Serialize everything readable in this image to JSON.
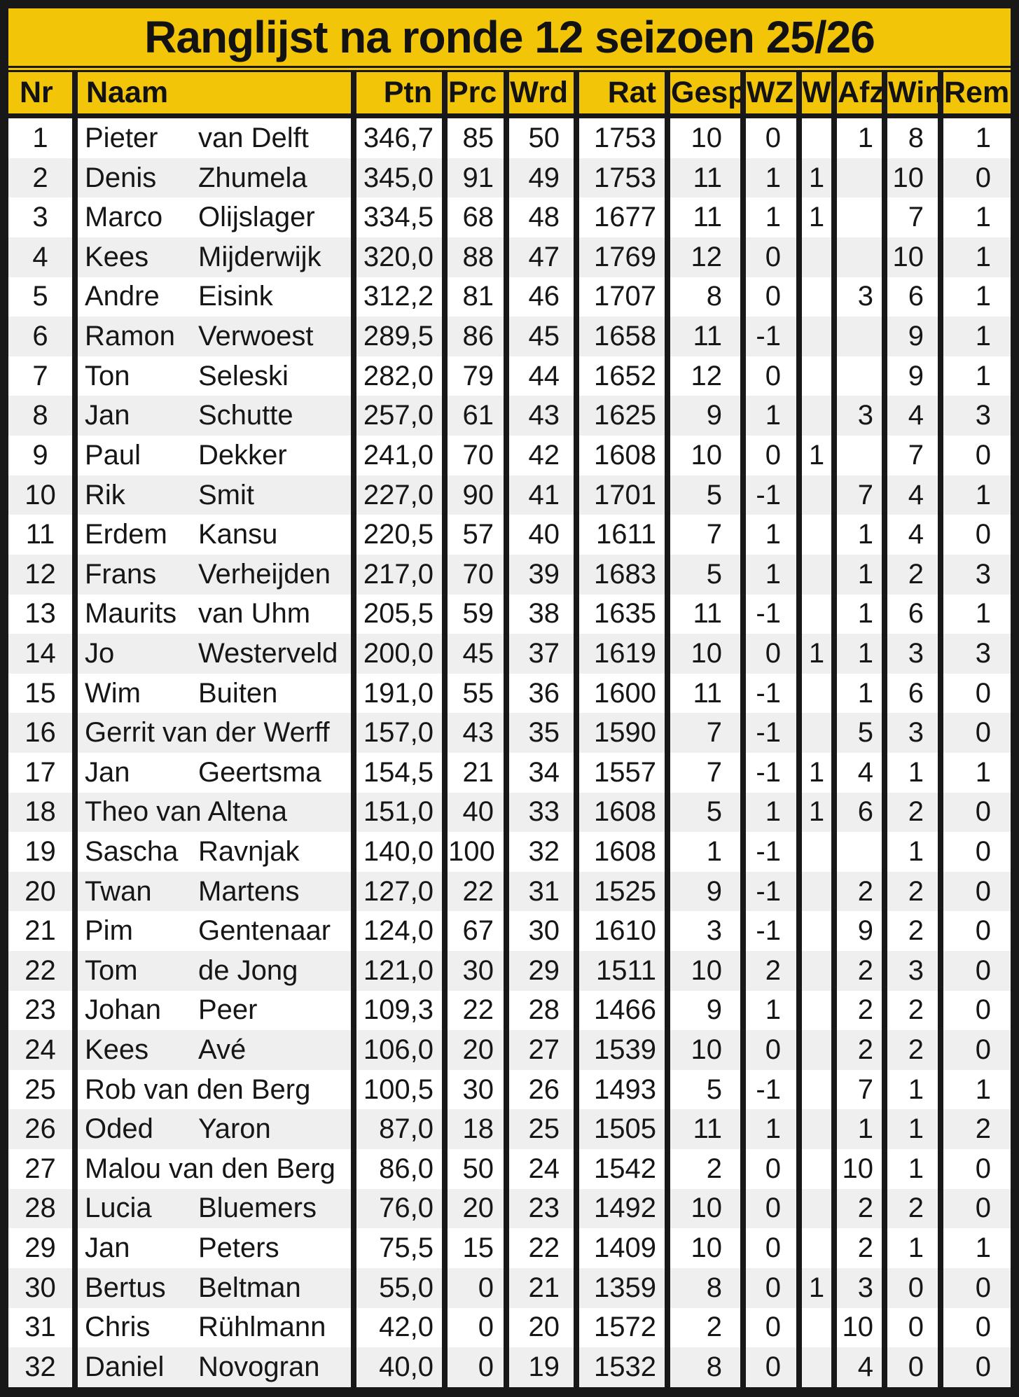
{
  "title": "Ranglijst na ronde 12 seizoen 25/26",
  "colors": {
    "header_yellow": "#F2C508",
    "border_black": "#181818",
    "row_white": "#FFFFFF",
    "row_alt_gray": "#EFEFEF"
  },
  "columns": [
    {
      "key": "nr",
      "label": "Nr"
    },
    {
      "key": "name",
      "label": "Naam"
    },
    {
      "key": "ptn",
      "label": "Ptn"
    },
    {
      "key": "prc",
      "label": "Prc"
    },
    {
      "key": "wrd",
      "label": "Wrd"
    },
    {
      "key": "rat",
      "label": "Rat"
    },
    {
      "key": "gesp",
      "label": "Gesp"
    },
    {
      "key": "wz",
      "label": "WZ"
    },
    {
      "key": "w",
      "label": "W"
    },
    {
      "key": "afz",
      "label": "Afz"
    },
    {
      "key": "win",
      "label": "Win"
    },
    {
      "key": "rem",
      "label": "Rem"
    }
  ],
  "rows": [
    {
      "nr": 1,
      "first": "Pieter",
      "last": "van Delft",
      "flow": false,
      "ptn": "346,7",
      "prc": "85",
      "wrd": "50",
      "rat": "1753",
      "gesp": "10",
      "wz": "0",
      "w": "",
      "afz": "1",
      "win": "8",
      "rem": "1"
    },
    {
      "nr": 2,
      "first": "Denis",
      "last": "Zhumela",
      "flow": false,
      "ptn": "345,0",
      "prc": "91",
      "wrd": "49",
      "rat": "1753",
      "gesp": "11",
      "wz": "1",
      "w": "1",
      "afz": "",
      "win": "10",
      "rem": "0"
    },
    {
      "nr": 3,
      "first": "Marco",
      "last": "Olijslager",
      "flow": false,
      "ptn": "334,5",
      "prc": "68",
      "wrd": "48",
      "rat": "1677",
      "gesp": "11",
      "wz": "1",
      "w": "1",
      "afz": "",
      "win": "7",
      "rem": "1"
    },
    {
      "nr": 4,
      "first": "Kees",
      "last": "Mijderwijk",
      "flow": false,
      "ptn": "320,0",
      "prc": "88",
      "wrd": "47",
      "rat": "1769",
      "gesp": "12",
      "wz": "0",
      "w": "",
      "afz": "",
      "win": "10",
      "rem": "1"
    },
    {
      "nr": 5,
      "first": "Andre",
      "last": "Eisink",
      "flow": false,
      "ptn": "312,2",
      "prc": "81",
      "wrd": "46",
      "rat": "1707",
      "gesp": "8",
      "wz": "0",
      "w": "",
      "afz": "3",
      "win": "6",
      "rem": "1"
    },
    {
      "nr": 6,
      "first": "Ramon",
      "last": "Verwoest",
      "flow": false,
      "ptn": "289,5",
      "prc": "86",
      "wrd": "45",
      "rat": "1658",
      "gesp": "11",
      "wz": "-1",
      "w": "",
      "afz": "",
      "win": "9",
      "rem": "1"
    },
    {
      "nr": 7,
      "first": "Ton",
      "last": "Seleski",
      "flow": false,
      "ptn": "282,0",
      "prc": "79",
      "wrd": "44",
      "rat": "1652",
      "gesp": "12",
      "wz": "0",
      "w": "",
      "afz": "",
      "win": "9",
      "rem": "1"
    },
    {
      "nr": 8,
      "first": "Jan",
      "last": "Schutte",
      "flow": false,
      "ptn": "257,0",
      "prc": "61",
      "wrd": "43",
      "rat": "1625",
      "gesp": "9",
      "wz": "1",
      "w": "",
      "afz": "3",
      "win": "4",
      "rem": "3"
    },
    {
      "nr": 9,
      "first": "Paul",
      "last": "Dekker",
      "flow": false,
      "ptn": "241,0",
      "prc": "70",
      "wrd": "42",
      "rat": "1608",
      "gesp": "10",
      "wz": "0",
      "w": "1",
      "afz": "",
      "win": "7",
      "rem": "0"
    },
    {
      "nr": 10,
      "first": "Rik",
      "last": "Smit",
      "flow": false,
      "ptn": "227,0",
      "prc": "90",
      "wrd": "41",
      "rat": "1701",
      "gesp": "5",
      "wz": "-1",
      "w": "",
      "afz": "7",
      "win": "4",
      "rem": "1"
    },
    {
      "nr": 11,
      "first": "Erdem",
      "last": "Kansu",
      "flow": false,
      "ptn": "220,5",
      "prc": "57",
      "wrd": "40",
      "rat": "1611",
      "gesp": "7",
      "wz": "1",
      "w": "",
      "afz": "1",
      "win": "4",
      "rem": "0"
    },
    {
      "nr": 12,
      "first": "Frans",
      "last": "Verheijden",
      "flow": false,
      "ptn": "217,0",
      "prc": "70",
      "wrd": "39",
      "rat": "1683",
      "gesp": "5",
      "wz": "1",
      "w": "",
      "afz": "1",
      "win": "2",
      "rem": "3"
    },
    {
      "nr": 13,
      "first": "Maurits",
      "last": "van Uhm",
      "flow": false,
      "ptn": "205,5",
      "prc": "59",
      "wrd": "38",
      "rat": "1635",
      "gesp": "11",
      "wz": "-1",
      "w": "",
      "afz": "1",
      "win": "6",
      "rem": "1"
    },
    {
      "nr": 14,
      "first": "Jo",
      "last": "Westerveld",
      "flow": false,
      "ptn": "200,0",
      "prc": "45",
      "wrd": "37",
      "rat": "1619",
      "gesp": "10",
      "wz": "0",
      "w": "1",
      "afz": "1",
      "win": "3",
      "rem": "3"
    },
    {
      "nr": 15,
      "first": "Wim",
      "last": "Buiten",
      "flow": false,
      "ptn": "191,0",
      "prc": "55",
      "wrd": "36",
      "rat": "1600",
      "gesp": "11",
      "wz": "-1",
      "w": "",
      "afz": "1",
      "win": "6",
      "rem": "0"
    },
    {
      "nr": 16,
      "first": "Gerrit",
      "last": "van der Werff",
      "flow": true,
      "ptn": "157,0",
      "prc": "43",
      "wrd": "35",
      "rat": "1590",
      "gesp": "7",
      "wz": "-1",
      "w": "",
      "afz": "5",
      "win": "3",
      "rem": "0"
    },
    {
      "nr": 17,
      "first": "Jan",
      "last": "Geertsma",
      "flow": false,
      "ptn": "154,5",
      "prc": "21",
      "wrd": "34",
      "rat": "1557",
      "gesp": "7",
      "wz": "-1",
      "w": "1",
      "afz": "4",
      "win": "1",
      "rem": "1"
    },
    {
      "nr": 18,
      "first": "Theo",
      "last": "van Altena",
      "flow": true,
      "ptn": "151,0",
      "prc": "40",
      "wrd": "33",
      "rat": "1608",
      "gesp": "5",
      "wz": "1",
      "w": "1",
      "afz": "6",
      "win": "2",
      "rem": "0"
    },
    {
      "nr": 19,
      "first": "Sascha",
      "last": "Ravnjak",
      "flow": false,
      "ptn": "140,0",
      "prc": "100",
      "wrd": "32",
      "rat": "1608",
      "gesp": "1",
      "wz": "-1",
      "w": "",
      "afz": "",
      "win": "1",
      "rem": "0"
    },
    {
      "nr": 20,
      "first": "Twan",
      "last": "Martens",
      "flow": false,
      "ptn": "127,0",
      "prc": "22",
      "wrd": "31",
      "rat": "1525",
      "gesp": "9",
      "wz": "-1",
      "w": "",
      "afz": "2",
      "win": "2",
      "rem": "0"
    },
    {
      "nr": 21,
      "first": "Pim",
      "last": "Gentenaar",
      "flow": false,
      "ptn": "124,0",
      "prc": "67",
      "wrd": "30",
      "rat": "1610",
      "gesp": "3",
      "wz": "-1",
      "w": "",
      "afz": "9",
      "win": "2",
      "rem": "0"
    },
    {
      "nr": 22,
      "first": "Tom",
      "last": "de Jong",
      "flow": false,
      "ptn": "121,0",
      "prc": "30",
      "wrd": "29",
      "rat": "1511",
      "gesp": "10",
      "wz": "2",
      "w": "",
      "afz": "2",
      "win": "3",
      "rem": "0"
    },
    {
      "nr": 23,
      "first": "Johan",
      "last": "Peer",
      "flow": false,
      "ptn": "109,3",
      "prc": "22",
      "wrd": "28",
      "rat": "1466",
      "gesp": "9",
      "wz": "1",
      "w": "",
      "afz": "2",
      "win": "2",
      "rem": "0"
    },
    {
      "nr": 24,
      "first": "Kees",
      "last": "Avé",
      "flow": false,
      "ptn": "106,0",
      "prc": "20",
      "wrd": "27",
      "rat": "1539",
      "gesp": "10",
      "wz": "0",
      "w": "",
      "afz": "2",
      "win": "2",
      "rem": "0"
    },
    {
      "nr": 25,
      "first": "Rob",
      "last": "van den Berg",
      "flow": true,
      "ptn": "100,5",
      "prc": "30",
      "wrd": "26",
      "rat": "1493",
      "gesp": "5",
      "wz": "-1",
      "w": "",
      "afz": "7",
      "win": "1",
      "rem": "1"
    },
    {
      "nr": 26,
      "first": "Oded",
      "last": "Yaron",
      "flow": false,
      "ptn": "87,0",
      "prc": "18",
      "wrd": "25",
      "rat": "1505",
      "gesp": "11",
      "wz": "1",
      "w": "",
      "afz": "1",
      "win": "1",
      "rem": "2"
    },
    {
      "nr": 27,
      "first": "Malou",
      "last": "van den Berg",
      "flow": true,
      "ptn": "86,0",
      "prc": "50",
      "wrd": "24",
      "rat": "1542",
      "gesp": "2",
      "wz": "0",
      "w": "",
      "afz": "10",
      "win": "1",
      "rem": "0"
    },
    {
      "nr": 28,
      "first": "Lucia",
      "last": "Bluemers",
      "flow": false,
      "ptn": "76,0",
      "prc": "20",
      "wrd": "23",
      "rat": "1492",
      "gesp": "10",
      "wz": "0",
      "w": "",
      "afz": "2",
      "win": "2",
      "rem": "0"
    },
    {
      "nr": 29,
      "first": "Jan",
      "last": "Peters",
      "flow": false,
      "ptn": "75,5",
      "prc": "15",
      "wrd": "22",
      "rat": "1409",
      "gesp": "10",
      "wz": "0",
      "w": "",
      "afz": "2",
      "win": "1",
      "rem": "1"
    },
    {
      "nr": 30,
      "first": "Bertus",
      "last": "Beltman",
      "flow": false,
      "ptn": "55,0",
      "prc": "0",
      "wrd": "21",
      "rat": "1359",
      "gesp": "8",
      "wz": "0",
      "w": "1",
      "afz": "3",
      "win": "0",
      "rem": "0"
    },
    {
      "nr": 31,
      "first": "Chris",
      "last": "Rühlmann",
      "flow": false,
      "ptn": "42,0",
      "prc": "0",
      "wrd": "20",
      "rat": "1572",
      "gesp": "2",
      "wz": "0",
      "w": "",
      "afz": "10",
      "win": "0",
      "rem": "0"
    },
    {
      "nr": 32,
      "first": "Daniel",
      "last": "Novogran",
      "flow": false,
      "ptn": "40,0",
      "prc": "0",
      "wrd": "19",
      "rat": "1532",
      "gesp": "8",
      "wz": "0",
      "w": "",
      "afz": "4",
      "win": "0",
      "rem": "0"
    }
  ]
}
